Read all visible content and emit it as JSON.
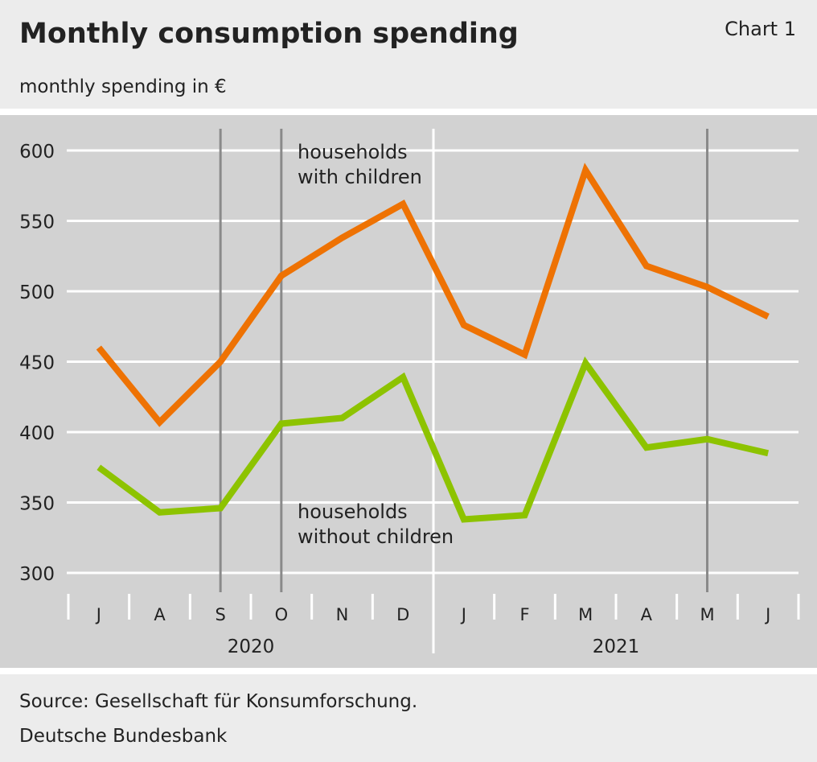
{
  "title": "Monthly consumption spending",
  "chart_number": "Chart 1",
  "subtitle": "monthly spending in €",
  "source": "Source: Gesellschaft für Konsumforschung.",
  "publisher": "Deutsche Bundesbank",
  "chart_data": {
    "type": "line",
    "title": "Monthly consumption spending",
    "ylabel": "monthly spending in €",
    "ylim": [
      300,
      600
    ],
    "yticks": [
      "300",
      "350",
      "400",
      "450",
      "500",
      "550",
      "600"
    ],
    "categories": [
      "J",
      "A",
      "S",
      "O",
      "N",
      "D",
      "J",
      "F",
      "M",
      "A",
      "M",
      "J"
    ],
    "years": [
      {
        "label": "2020",
        "months": 6
      },
      {
        "label": "2021",
        "months": 6
      }
    ],
    "grid": true,
    "highlight_months": [
      2,
      3,
      10
    ],
    "series": [
      {
        "name": "households with children",
        "color": "#ee7203",
        "values": [
          460,
          407,
          450,
          511,
          538,
          562,
          476,
          455,
          586,
          518,
          503,
          482
        ]
      },
      {
        "name": "households without children",
        "color": "#8dc300",
        "values": [
          375,
          343,
          346,
          406,
          410,
          439,
          338,
          341,
          449,
          389,
          395,
          385
        ]
      }
    ]
  }
}
